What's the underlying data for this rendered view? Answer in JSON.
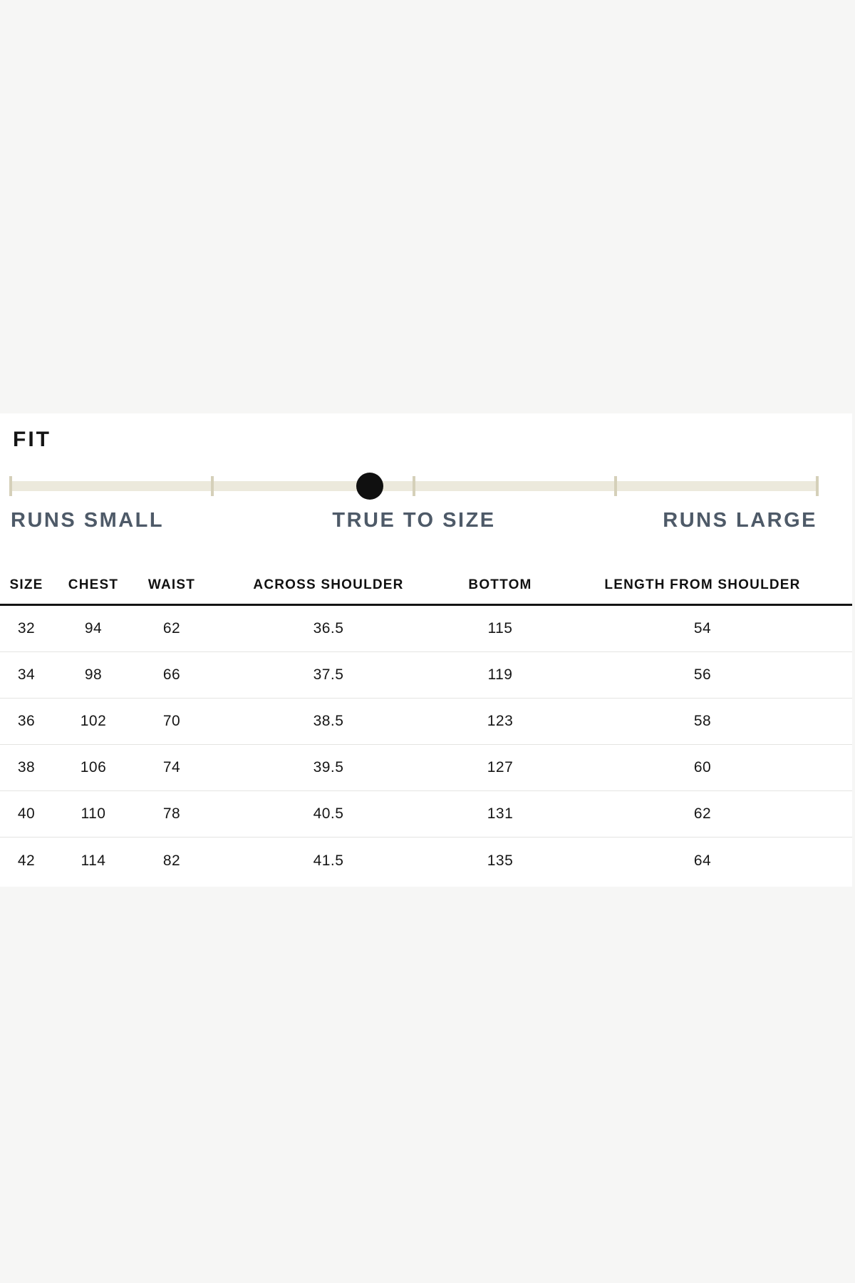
{
  "page": {
    "background_color": "#f6f6f5",
    "card_color": "#ffffff"
  },
  "fit_section": {
    "title": "FIT",
    "slider": {
      "track_color": "#ece9dc",
      "tick_color": "#d5d0b9",
      "dot_color": "#101010",
      "tick_count": 5,
      "position_percent": 44.5,
      "labels": {
        "left": "RUNS SMALL",
        "center": "TRUE TO SIZE",
        "right": "RUNS LARGE"
      },
      "selected_value": "TRUE TO SIZE",
      "label_color": "#4e5a68"
    }
  },
  "size_table": {
    "headers": [
      "SIZE",
      "CHEST",
      "WAIST",
      "ACROSS SHOULDER",
      "BOTTOM",
      "LENGTH FROM SHOULDER"
    ],
    "rows": [
      [
        "32",
        "94",
        "62",
        "36.5",
        "115",
        "54"
      ],
      [
        "34",
        "98",
        "66",
        "37.5",
        "119",
        "56"
      ],
      [
        "36",
        "102",
        "70",
        "38.5",
        "123",
        "58"
      ],
      [
        "38",
        "106",
        "74",
        "39.5",
        "127",
        "60"
      ],
      [
        "40",
        "110",
        "78",
        "40.5",
        "131",
        "62"
      ],
      [
        "42",
        "114",
        "82",
        "41.5",
        "135",
        "64"
      ]
    ]
  }
}
